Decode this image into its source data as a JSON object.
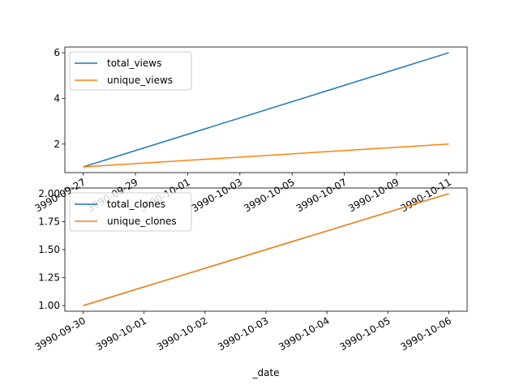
{
  "chart_data": [
    {
      "type": "line",
      "x": [
        "3990-09-27",
        "3990-10-11"
      ],
      "xtick_labels": [
        "3990-09-27",
        "3990-09-29",
        "3990-10-01",
        "3990-10-03",
        "3990-10-05",
        "3990-10-07",
        "3990-10-09",
        "3990-10-11"
      ],
      "ytick_labels": [
        "2",
        "4",
        "6"
      ],
      "ylim": [
        0.75,
        6.25
      ],
      "series": [
        {
          "name": "total_views",
          "color": "#1f77b4",
          "values": [
            1,
            6
          ]
        },
        {
          "name": "unique_views",
          "color": "#ff7f0e",
          "values": [
            1,
            2
          ]
        }
      ],
      "legend": "upper-left",
      "grid": false
    },
    {
      "type": "line",
      "x": [
        "3990-09-30",
        "3990-10-06"
      ],
      "xtick_labels": [
        "3990-09-30",
        "3990-10-01",
        "3990-10-02",
        "3990-10-03",
        "3990-10-04",
        "3990-10-05",
        "3990-10-06"
      ],
      "ytick_labels": [
        "1.00",
        "1.25",
        "1.50",
        "1.75",
        "2.00"
      ],
      "ylim": [
        0.95,
        2.05
      ],
      "xlabel": "_date",
      "series": [
        {
          "name": "total_clones",
          "color": "#1f77b4",
          "values": [
            1,
            2
          ]
        },
        {
          "name": "unique_clones",
          "color": "#ff7f0e",
          "values": [
            1,
            2
          ]
        }
      ],
      "legend": "upper-left",
      "grid": false
    }
  ]
}
